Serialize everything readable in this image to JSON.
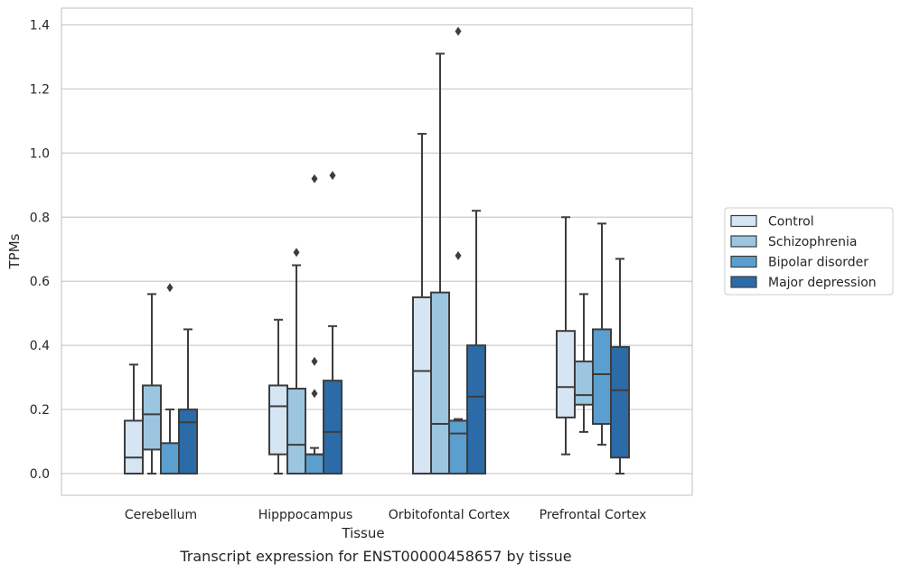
{
  "chart_data": {
    "type": "box",
    "xlabel": "Tissue",
    "ylabel": "TPMs",
    "caption": "Transcript expression for ENST00000458657 by tissue",
    "ylim": [
      -0.065,
      1.45
    ],
    "yticks": [
      "0.0",
      "0.2",
      "0.4",
      "0.6",
      "0.8",
      "1.0",
      "1.2",
      "1.4"
    ],
    "grid": true,
    "legend_position": "right",
    "categories": [
      "Cerebellum",
      "Hipppocampus",
      "Orbitofontal Cortex",
      "Prefrontal Cortex"
    ],
    "series": [
      {
        "name": "Control",
        "color": "#d6e5f4",
        "boxes": [
          {
            "whislo": 0.0,
            "q1": 0.0,
            "med": 0.05,
            "q3": 0.165,
            "whishi": 0.34,
            "fliers": []
          },
          {
            "whislo": 0.0,
            "q1": 0.06,
            "med": 0.21,
            "q3": 0.275,
            "whishi": 0.48,
            "fliers": []
          },
          {
            "whislo": 0.0,
            "q1": 0.0,
            "med": 0.32,
            "q3": 0.55,
            "whishi": 1.06,
            "fliers": []
          },
          {
            "whislo": 0.06,
            "q1": 0.175,
            "med": 0.27,
            "q3": 0.445,
            "whishi": 0.8,
            "fliers": []
          }
        ]
      },
      {
        "name": "Schizophrenia",
        "color": "#9cc5e0",
        "boxes": [
          {
            "whislo": 0.0,
            "q1": 0.075,
            "med": 0.185,
            "q3": 0.275,
            "whishi": 0.56,
            "fliers": []
          },
          {
            "whislo": 0.0,
            "q1": 0.0,
            "med": 0.09,
            "q3": 0.265,
            "whishi": 0.65,
            "fliers": [
              0.69
            ]
          },
          {
            "whislo": 0.0,
            "q1": 0.0,
            "med": 0.155,
            "q3": 0.565,
            "whishi": 1.31,
            "fliers": []
          },
          {
            "whislo": 0.13,
            "q1": 0.215,
            "med": 0.245,
            "q3": 0.35,
            "whishi": 0.56,
            "fliers": []
          }
        ]
      },
      {
        "name": "Bipolar disorder",
        "color": "#5a9fcf",
        "boxes": [
          {
            "whislo": 0.0,
            "q1": 0.0,
            "med": 0.0,
            "q3": 0.095,
            "whishi": 0.2,
            "fliers": [
              0.58
            ]
          },
          {
            "whislo": 0.0,
            "q1": 0.0,
            "med": 0.06,
            "q3": 0.06,
            "whishi": 0.08,
            "fliers": [
              0.25,
              0.35,
              0.92
            ]
          },
          {
            "whislo": 0.0,
            "q1": 0.0,
            "med": 0.125,
            "q3": 0.165,
            "whishi": 0.17,
            "fliers": [
              0.68,
              1.38
            ]
          },
          {
            "whislo": 0.09,
            "q1": 0.155,
            "med": 0.31,
            "q3": 0.45,
            "whishi": 0.78,
            "fliers": []
          }
        ]
      },
      {
        "name": "Major depression",
        "color": "#2b6ba8",
        "boxes": [
          {
            "whislo": 0.0,
            "q1": 0.0,
            "med": 0.16,
            "q3": 0.2,
            "whishi": 0.45,
            "fliers": []
          },
          {
            "whislo": 0.0,
            "q1": 0.0,
            "med": 0.13,
            "q3": 0.29,
            "whishi": 0.46,
            "fliers": [
              0.93
            ]
          },
          {
            "whislo": 0.0,
            "q1": 0.0,
            "med": 0.24,
            "q3": 0.4,
            "whishi": 0.82,
            "fliers": []
          },
          {
            "whislo": 0.0,
            "q1": 0.05,
            "med": 0.26,
            "q3": 0.395,
            "whishi": 0.67,
            "fliers": []
          }
        ]
      }
    ]
  }
}
